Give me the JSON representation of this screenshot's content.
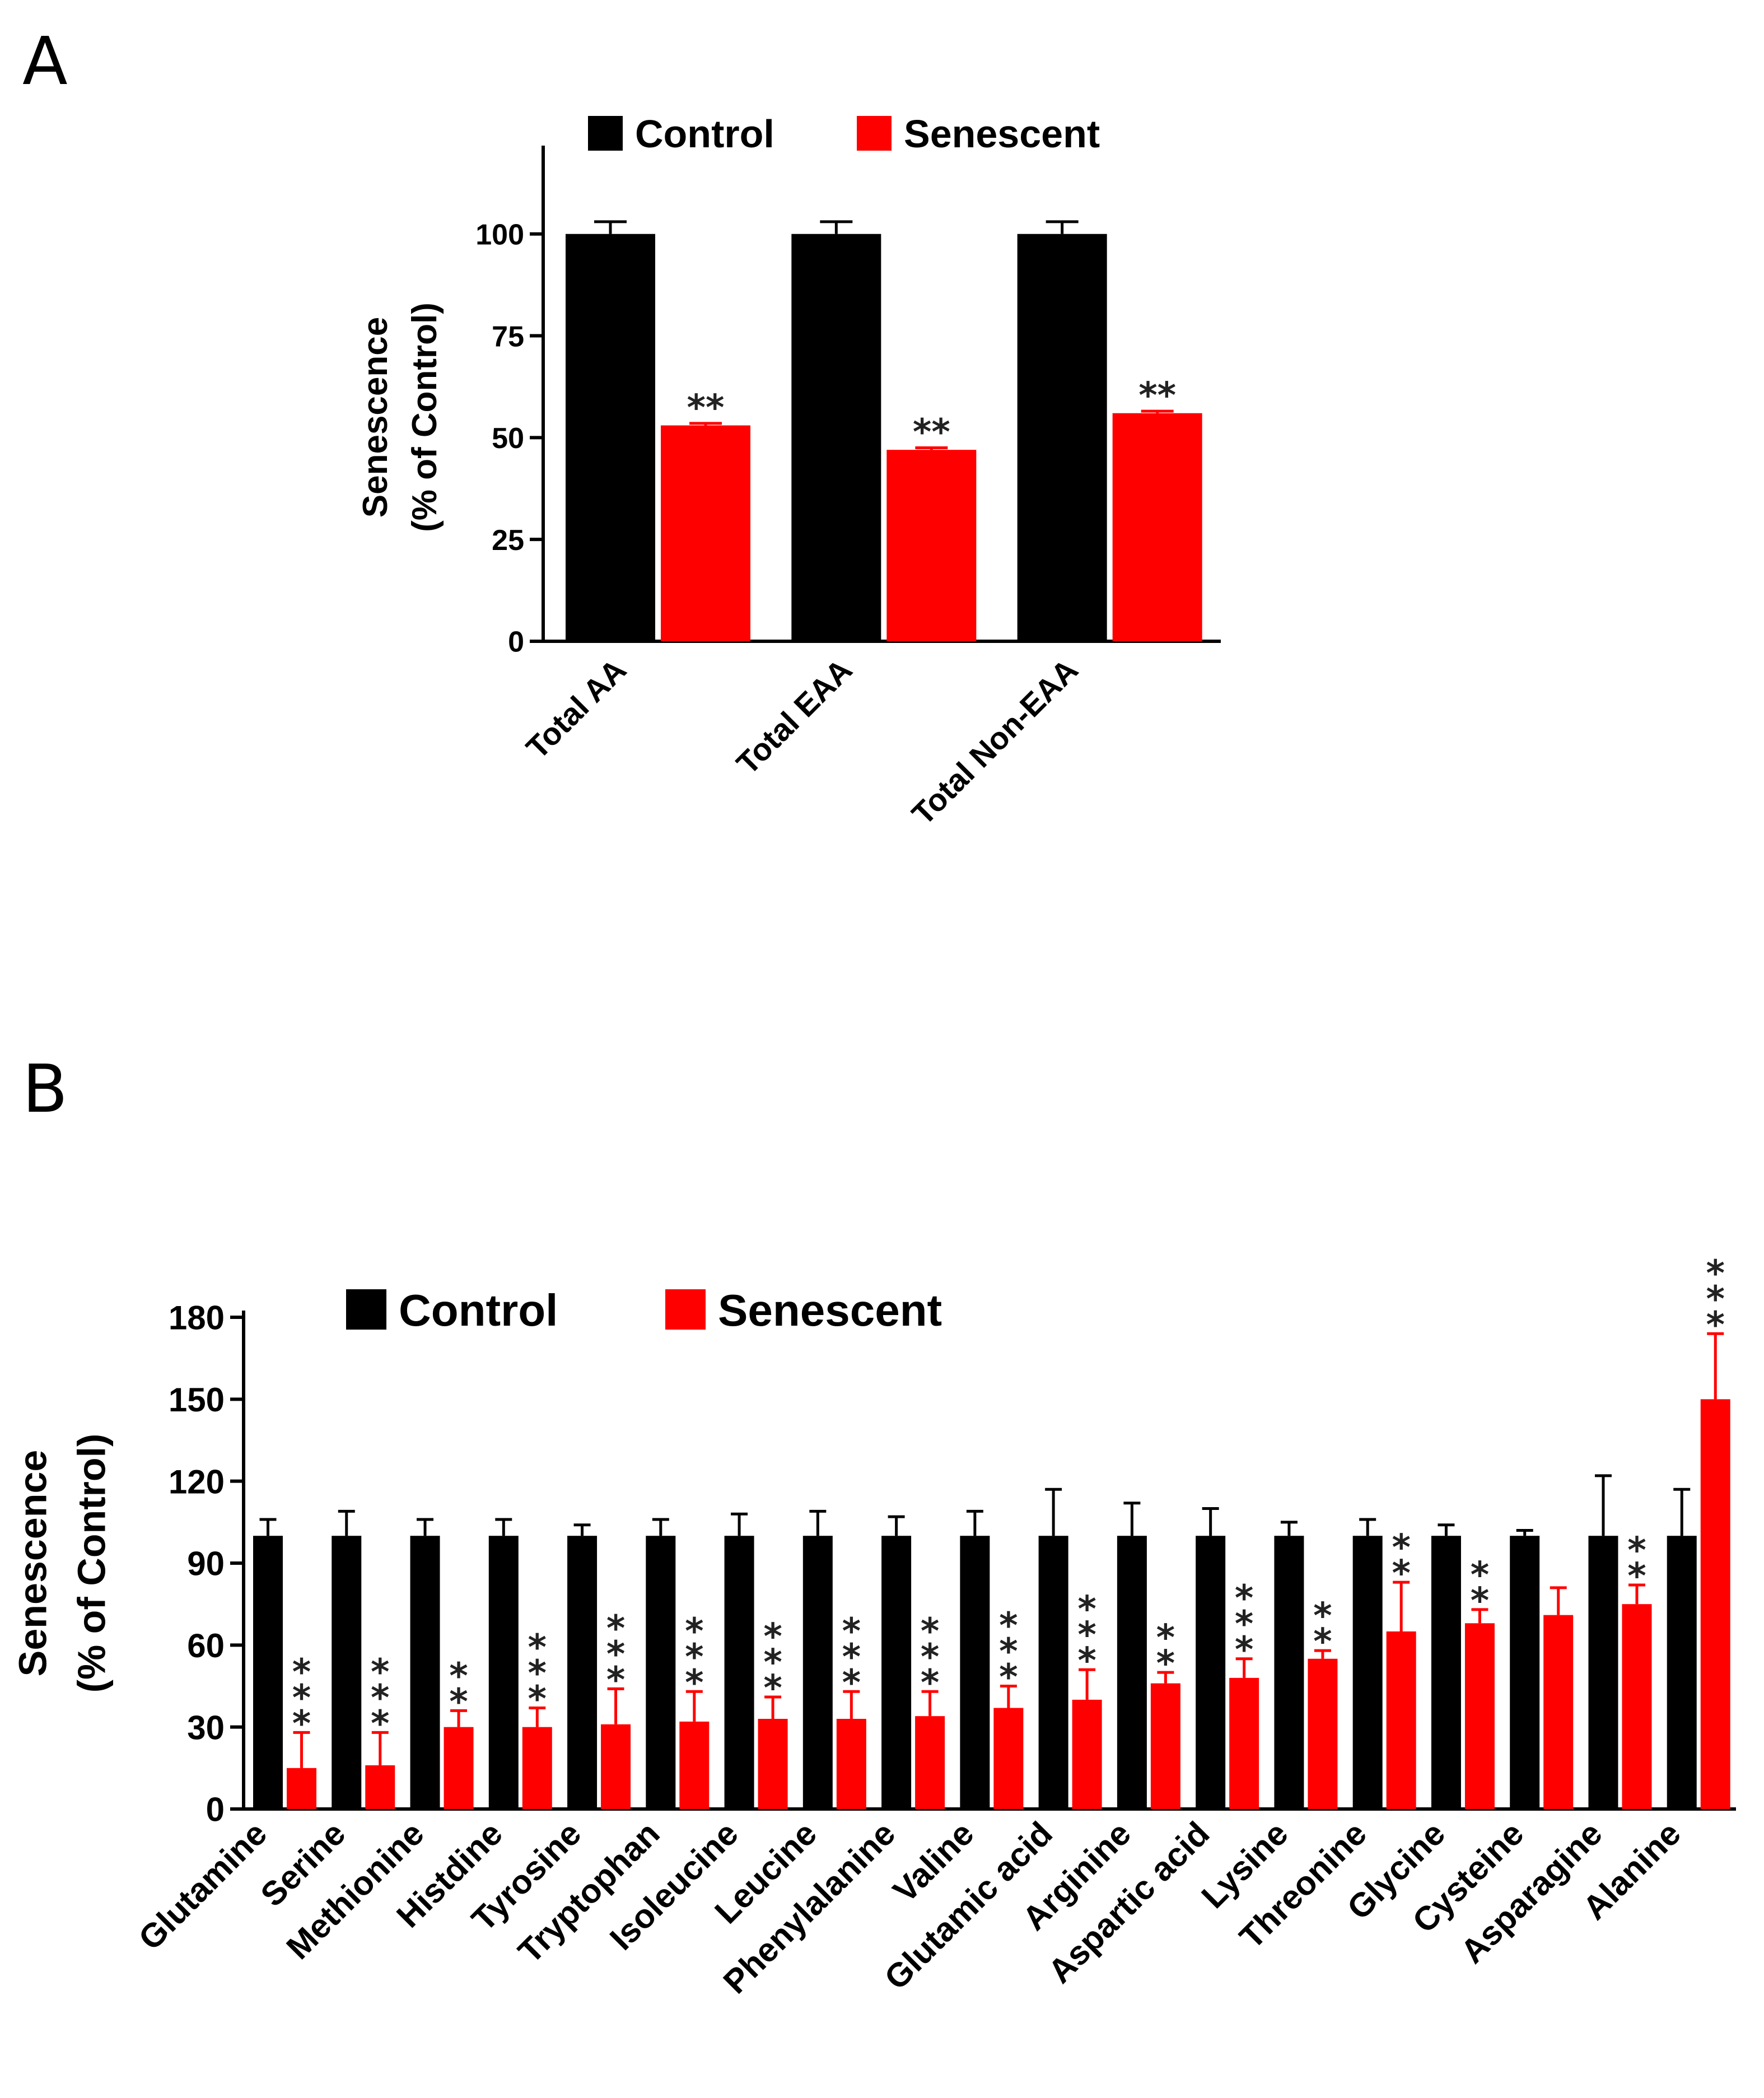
{
  "panels": {
    "a": {
      "letter": "A"
    },
    "b": {
      "letter": "B"
    }
  },
  "colors": {
    "control": "#000000",
    "senescent": "#ff0000"
  },
  "chart_data": [
    {
      "type": "bar",
      "panel": "A",
      "ylabel_lines": [
        "Senescence",
        "(% of Control)"
      ],
      "ylim": [
        0,
        110
      ],
      "yticks": [
        0,
        25,
        50,
        75,
        100
      ],
      "legend_position": "top",
      "categories": [
        "Total AA",
        "Total EAA",
        "Total  Non-EAA"
      ],
      "series": [
        {
          "name": "Control",
          "color": "#000000",
          "values": [
            100,
            100,
            100
          ],
          "errors": [
            3,
            3,
            3
          ]
        },
        {
          "name": "Senescent",
          "color": "#ff0000",
          "values": [
            53,
            47,
            56
          ],
          "errors": [
            0.5,
            0.5,
            0.5
          ]
        }
      ],
      "annotations": [
        "**",
        "**",
        "**"
      ]
    },
    {
      "type": "bar",
      "panel": "B",
      "ylabel_lines": [
        "Senescence",
        "(% of Control)"
      ],
      "ylim": [
        0,
        180
      ],
      "yticks": [
        0,
        30,
        60,
        90,
        120,
        150,
        180
      ],
      "legend_position": "top",
      "categories": [
        "Glutamine",
        "Serine",
        "Methionine",
        "Histdine",
        "Tyrosine",
        "Tryptophan",
        "Isoleucine",
        "Leucine",
        "Phenylalanine",
        "Valine",
        "Glutamic acid",
        "Arginine",
        "Aspartic acid",
        "Lysine",
        "Threonine",
        "Glycine",
        "Cysteine",
        "Asparagine",
        "Alanine"
      ],
      "series": [
        {
          "name": "Control",
          "color": "#000000",
          "values": [
            100,
            100,
            100,
            100,
            100,
            100,
            100,
            100,
            100,
            100,
            100,
            100,
            100,
            100,
            100,
            100,
            100,
            100,
            100
          ],
          "errors": [
            6,
            9,
            6,
            6,
            4,
            6,
            8,
            9,
            7,
            9,
            17,
            12,
            10,
            5,
            6,
            4,
            2,
            22,
            17
          ]
        },
        {
          "name": "Senescent",
          "color": "#ff0000",
          "values": [
            15,
            16,
            30,
            30,
            31,
            32,
            33,
            33,
            34,
            37,
            40,
            46,
            48,
            55,
            65,
            68,
            71,
            75,
            150
          ],
          "errors": [
            13,
            12,
            6,
            7,
            13,
            11,
            8,
            10,
            9,
            8,
            11,
            4,
            7,
            3,
            18,
            5,
            10,
            7,
            24
          ]
        }
      ],
      "annotations": [
        "***",
        "***",
        "**",
        "***",
        "***",
        "***",
        "***",
        "***",
        "***",
        "***",
        "***",
        "**",
        "***",
        "**",
        "**",
        "**",
        "",
        "**",
        "***"
      ]
    }
  ]
}
